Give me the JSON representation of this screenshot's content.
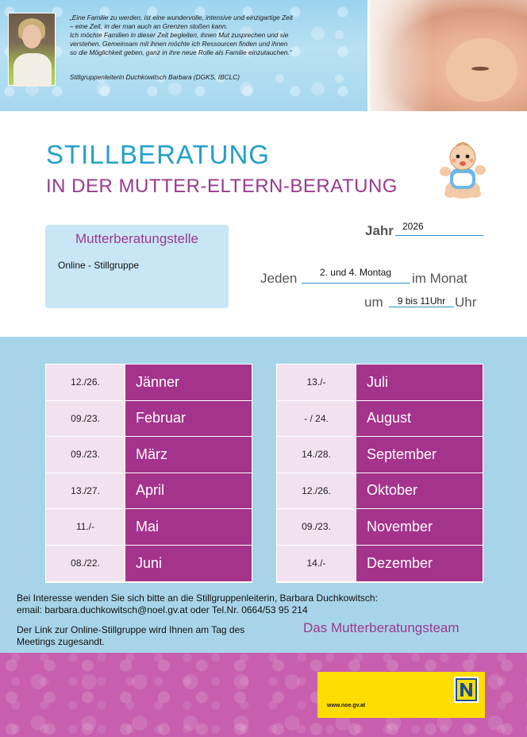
{
  "banner": {
    "quote_lines": [
      "„Eine Familie zu werden, ist eine wundervolle, intensive und einzigartige Zeit",
      "– eine Zeit, in der man auch an Grenzen stoßen kann.",
      "Ich möchte Familien in dieser Zeit begleiten, ihnen Mut zusprechen und sie",
      "verstehen. Gemeinsam mit ihnen möchte ich Ressourcen finden und ihnen",
      "so die Möglichkeit geben, ganz in ihre neue Rolle als Familie einzutauchen.“"
    ],
    "author": "Stillgruppenleiterin Duchkowitsch Barbara (DGKS, IBCLC)"
  },
  "title": {
    "main": "STILLBERATUNG",
    "sub": "IN DER MUTTER-ELTERN-BERATUNG"
  },
  "station": {
    "heading": "Mutterberatungstelle",
    "value": "Online - Stillgruppe"
  },
  "form": {
    "year_label": "Jahr",
    "year_value": "2026",
    "every_label": "Jeden",
    "every_value": "2. und 4. Montag",
    "month_label": "im Monat",
    "at_label": "um",
    "time_value": "9 bis 11Uhr",
    "hour_label": "Uhr"
  },
  "months_left": [
    {
      "dates": "12./26.",
      "month": "Jänner"
    },
    {
      "dates": "09./23.",
      "month": "Februar"
    },
    {
      "dates": "09./23.",
      "month": "März"
    },
    {
      "dates": "13./27.",
      "month": "April"
    },
    {
      "dates": "11./-",
      "month": "Mai"
    },
    {
      "dates": "08./22.",
      "month": "Juni"
    }
  ],
  "months_right": [
    {
      "dates": "13./-",
      "month": "Juli"
    },
    {
      "dates": "- / 24.",
      "month": "August"
    },
    {
      "dates": "14./28.",
      "month": "September"
    },
    {
      "dates": "12./26.",
      "month": "Oktober"
    },
    {
      "dates": "09./23.",
      "month": "November"
    },
    {
      "dates": "14./-",
      "month": "Dezember"
    }
  ],
  "contact": {
    "line1": "Bei Interesse wenden Sie sich bitte an die Stillgruppenleiterin, Barbara Duchkowitsch:",
    "line2": "email: barbara.duchkowitsch@noel.gv.at oder Tel.Nr. 0664/53 95 214",
    "link_line1": "Der Link zur Online-Stillgruppe wird Ihnen am Tag des",
    "link_line2": "Meetings zugesandt.",
    "team": "Das Mutterberatungsteam"
  },
  "footer": {
    "url": "www.noe.gv.at",
    "logo_letter": "N"
  },
  "colors": {
    "title_blue": "#23a0c8",
    "accent_purple": "#9a3a8f",
    "month_purple": "#a4338b",
    "calendar_blue": "#a8d4e9",
    "footer_pink": "#c75fae",
    "noe_yellow": "#ffdd00"
  }
}
